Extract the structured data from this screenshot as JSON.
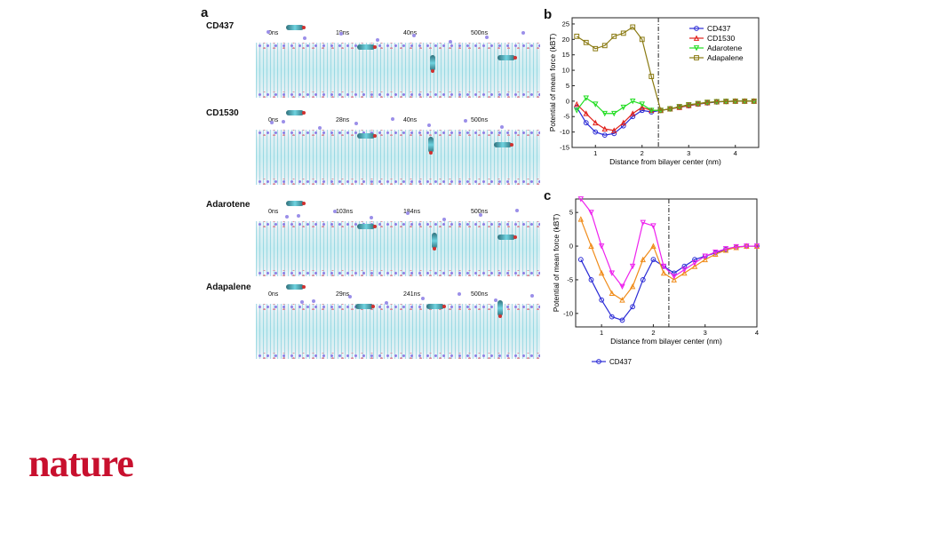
{
  "figure": {
    "panels": {
      "a": "a",
      "b": "b",
      "c": "c"
    },
    "rows": [
      {
        "label": "CD437",
        "times": [
          "0ns",
          "19ns",
          "40ns",
          "500ns"
        ]
      },
      {
        "label": "CD1530",
        "times": [
          "0ns",
          "28ns",
          "40ns",
          "500ns"
        ]
      },
      {
        "label": "Adarotene",
        "times": [
          "0ns",
          "103ns",
          "184ns",
          "500ns"
        ]
      },
      {
        "label": "Adapalene",
        "times": [
          "0ns",
          "29ns",
          "241ns",
          "500ns"
        ]
      }
    ]
  },
  "logo": {
    "text": "nature",
    "color": "#c8102e"
  },
  "chart_data": [
    {
      "type": "line",
      "panel": "b",
      "xlabel": "Distance from bilayer center (nm)",
      "ylabel": "Potential of mean force (kBT)",
      "xlim": [
        0.5,
        4.5
      ],
      "ylim": [
        -15,
        27
      ],
      "xticks": [
        1,
        2,
        3,
        4
      ],
      "yticks": [
        25,
        20,
        15,
        10,
        5,
        0,
        -5,
        -10,
        -15
      ],
      "vline": 2.35,
      "legend_position": "top-right",
      "x": [
        0.6,
        0.8,
        1.0,
        1.2,
        1.4,
        1.6,
        1.8,
        2.0,
        2.2,
        2.4,
        2.6,
        2.8,
        3.0,
        3.2,
        3.4,
        3.6,
        3.8,
        4.0,
        4.2,
        4.4
      ],
      "series": [
        {
          "name": "CD437",
          "color": "#2b2bd6",
          "marker": "circle",
          "values": [
            -2,
            -7,
            -10,
            -11,
            -10.5,
            -8,
            -5,
            -3,
            -3.5,
            -3,
            -2.5,
            -2,
            -1.5,
            -1,
            -0.6,
            -0.3,
            -0.1,
            0,
            0,
            0
          ]
        },
        {
          "name": "CD1530",
          "color": "#e0201a",
          "marker": "triangle",
          "values": [
            -1,
            -4,
            -7,
            -9,
            -9.5,
            -7,
            -4,
            -2,
            -3,
            -3,
            -2.5,
            -2,
            -1.4,
            -0.9,
            -0.5,
            -0.2,
            -0.1,
            0,
            0,
            0
          ]
        },
        {
          "name": "Adarotene",
          "color": "#22dd22",
          "marker": "triangle-down",
          "values": [
            -3,
            1,
            -1,
            -4,
            -4,
            -2,
            0,
            -1,
            -3,
            -3,
            -2.5,
            -1.8,
            -1.2,
            -0.8,
            -0.4,
            -0.2,
            -0.1,
            0,
            0,
            0
          ]
        },
        {
          "name": "Adapalene",
          "color": "#8a7a12",
          "marker": "square",
          "values": [
            21,
            19,
            17,
            18,
            21,
            22,
            24,
            20,
            8,
            -3,
            -2.5,
            -1.8,
            -1.2,
            -0.8,
            -0.4,
            -0.2,
            -0.1,
            0,
            0,
            0
          ]
        }
      ]
    },
    {
      "type": "line",
      "panel": "c",
      "xlabel": "Distance from bilayer center (nm)",
      "ylabel": "Potential of mean force (kBT)",
      "xlim": [
        0.5,
        4.0
      ],
      "ylim": [
        -12,
        7
      ],
      "xticks": [
        1,
        2,
        3,
        4
      ],
      "yticks": [
        5,
        0,
        -5,
        -10
      ],
      "vline": 2.3,
      "legend_position": "below",
      "x": [
        0.6,
        0.8,
        1.0,
        1.2,
        1.4,
        1.6,
        1.8,
        2.0,
        2.2,
        2.4,
        2.6,
        2.8,
        3.0,
        3.2,
        3.4,
        3.6,
        3.8,
        4.0
      ],
      "series": [
        {
          "name": "CD437",
          "color": "#2b2bd6",
          "marker": "circle",
          "values": [
            -2,
            -5,
            -8,
            -10.5,
            -11,
            -9,
            -5,
            -2,
            -3,
            -4,
            -3,
            -2,
            -1.5,
            -1,
            -0.5,
            -0.2,
            0,
            0
          ]
        },
        {
          "color": "#f08c1a",
          "marker": "triangle",
          "values": [
            4,
            0,
            -4,
            -7,
            -8,
            -6,
            -2,
            0,
            -4,
            -5,
            -4,
            -3,
            -2,
            -1.2,
            -0.6,
            -0.2,
            0,
            0
          ]
        },
        {
          "color": "#ee22ee",
          "marker": "triangle-down",
          "values": [
            7,
            5,
            0,
            -4,
            -6,
            -3,
            3.5,
            3,
            -3,
            -4.5,
            -3.5,
            -2.5,
            -1.5,
            -0.9,
            -0.4,
            -0.1,
            0,
            0
          ]
        }
      ]
    }
  ]
}
